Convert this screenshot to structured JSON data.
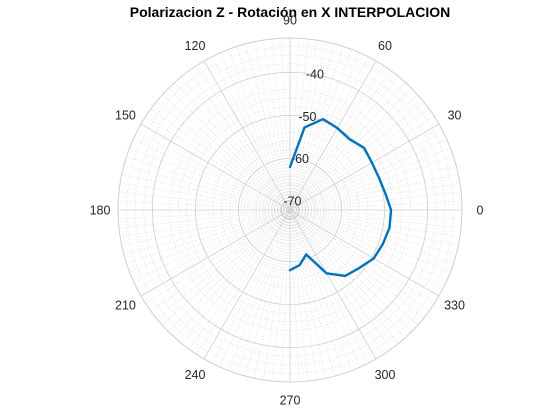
{
  "chart_data": {
    "type": "line",
    "coordinate_system": "polar",
    "title": "Polarizacion Z - Rotación en X INTERPOLACION",
    "theta_ticks": [
      "0",
      "30",
      "60",
      "90",
      "120",
      "150",
      "180",
      "210",
      "240",
      "270",
      "300",
      "330"
    ],
    "r_ticks": [
      "-70",
      "-60",
      "-50",
      "-40"
    ],
    "r_range": [
      -72,
      -32
    ],
    "grid": true,
    "minor_grid": true,
    "series": [
      {
        "color": "#0072BD",
        "theta_deg": [
          -90,
          -80,
          -70,
          -60,
          -50,
          -40,
          -30,
          -20,
          -10,
          0,
          10,
          20,
          30,
          40,
          50,
          60,
          70,
          80,
          90
        ],
        "r": [
          -58,
          -59,
          -61,
          -55,
          -52,
          -51,
          -49.5,
          -49,
          -48.5,
          -48.5,
          -49.5,
          -50,
          -50,
          -49.5,
          -50.5,
          -50,
          -49.5,
          -52.5,
          -62
        ]
      }
    ]
  }
}
